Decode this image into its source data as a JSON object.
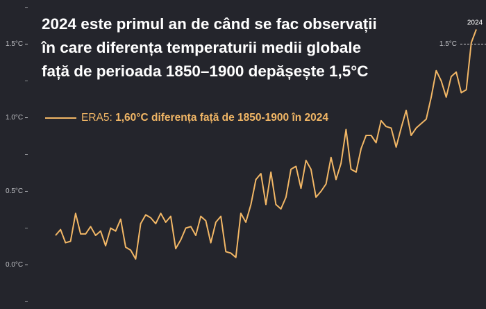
{
  "chart_data": {
    "type": "line",
    "title_lines": [
      "2024 este primul an de când se fac observații",
      "în care diferența temperaturii medii globale",
      "față de perioada 1850–1900 depășește 1,5°C"
    ],
    "x": [
      1940,
      1941,
      1942,
      1943,
      1944,
      1945,
      1946,
      1947,
      1948,
      1949,
      1950,
      1951,
      1952,
      1953,
      1954,
      1955,
      1956,
      1957,
      1958,
      1959,
      1960,
      1961,
      1962,
      1963,
      1964,
      1965,
      1966,
      1967,
      1968,
      1969,
      1970,
      1971,
      1972,
      1973,
      1974,
      1975,
      1976,
      1977,
      1978,
      1979,
      1980,
      1981,
      1982,
      1983,
      1984,
      1985,
      1986,
      1987,
      1988,
      1989,
      1990,
      1991,
      1992,
      1993,
      1994,
      1995,
      1996,
      1997,
      1998,
      1999,
      2000,
      2001,
      2002,
      2003,
      2004,
      2005,
      2006,
      2007,
      2008,
      2009,
      2010,
      2011,
      2012,
      2013,
      2014,
      2015,
      2016,
      2017,
      2018,
      2019,
      2020,
      2021,
      2022,
      2023,
      2024
    ],
    "series": [
      {
        "name": "ERA5:",
        "color": "#f2b766",
        "values": [
          0.2,
          0.24,
          0.15,
          0.16,
          0.35,
          0.21,
          0.21,
          0.26,
          0.2,
          0.23,
          0.13,
          0.25,
          0.23,
          0.31,
          0.12,
          0.1,
          0.04,
          0.28,
          0.34,
          0.32,
          0.28,
          0.35,
          0.29,
          0.33,
          0.11,
          0.17,
          0.25,
          0.26,
          0.2,
          0.33,
          0.3,
          0.15,
          0.29,
          0.33,
          0.09,
          0.08,
          0.05,
          0.35,
          0.29,
          0.41,
          0.58,
          0.62,
          0.41,
          0.63,
          0.41,
          0.38,
          0.46,
          0.65,
          0.67,
          0.52,
          0.71,
          0.65,
          0.46,
          0.5,
          0.55,
          0.73,
          0.58,
          0.69,
          0.92,
          0.65,
          0.63,
          0.79,
          0.88,
          0.88,
          0.83,
          0.98,
          0.94,
          0.93,
          0.8,
          0.93,
          1.05,
          0.88,
          0.93,
          0.96,
          0.99,
          1.14,
          1.32,
          1.25,
          1.14,
          1.28,
          1.31,
          1.17,
          1.19,
          1.51,
          1.6
        ]
      }
    ],
    "legend_note": "1,60°C diferența față de 1850-1900 în 2024",
    "xlim": [
      1940,
      2024
    ],
    "ylim": [
      -0.3,
      1.8
    ],
    "yticks": [
      {
        "value": 0,
        "label": "0.0°C"
      },
      {
        "value": 0.5,
        "label": "0.5°C"
      },
      {
        "value": 1,
        "label": "1.0°C"
      },
      {
        "value": 1.5,
        "label": "1.5°C"
      }
    ],
    "yminor_ticks": [
      -0.25,
      0.25,
      0.75,
      1.25,
      1.75
    ],
    "reference_line": {
      "value": 1.5,
      "label": "1.5°C"
    }
  }
}
